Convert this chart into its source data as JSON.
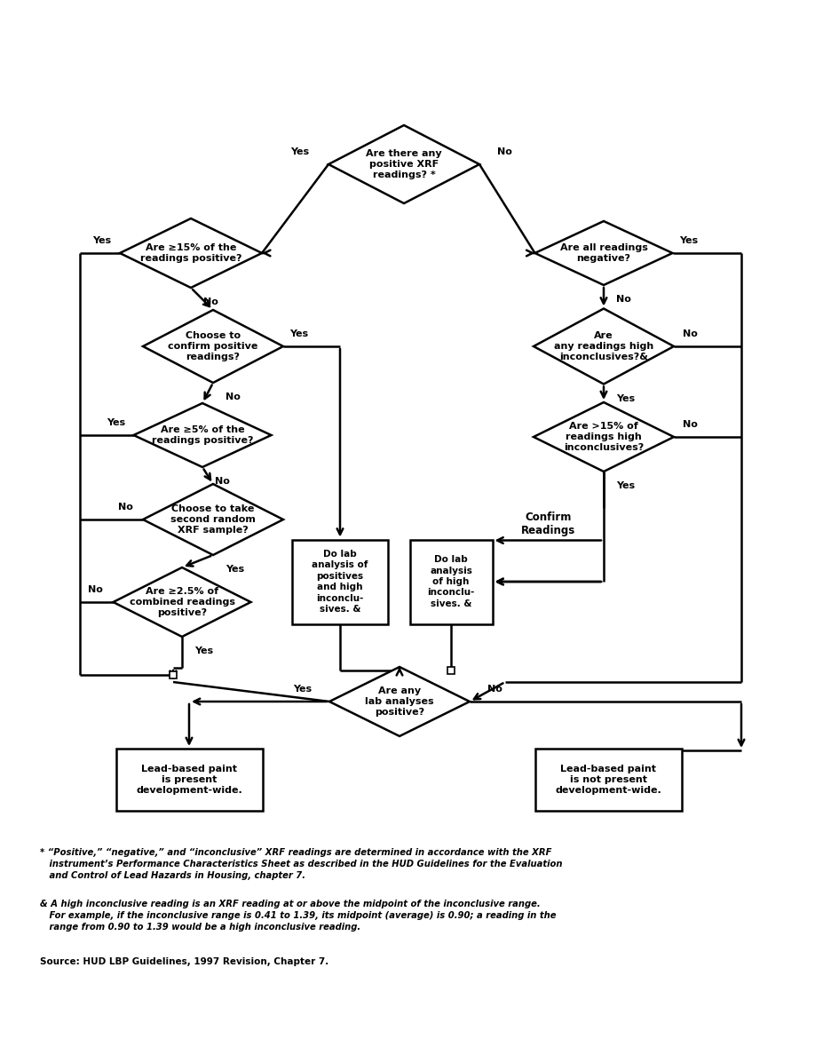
{
  "bg_color": "#ffffff",
  "footnote1_star": "* “Positive,” “negative,” and “inconclusive” XRF readings are determined in accordance with the XRF\n   instrument’s Performance Characteristics Sheet as described in the HUD Guidelines for the Evaluation\n   and Control of Lead Hazards in Housing, chapter 7.",
  "footnote2_amp": "& A high inconclusive reading is an XRF reading at or above the midpoint of the inconclusive range.\n   For example, if the inconclusive range is 0.41 to 1.39, its midpoint (average) is 0.90; a reading in the\n   range from 0.90 to 1.39 would be a high inconclusive reading.",
  "source": "Source: HUD LBP Guidelines, 1997 Revision, Chapter 7."
}
